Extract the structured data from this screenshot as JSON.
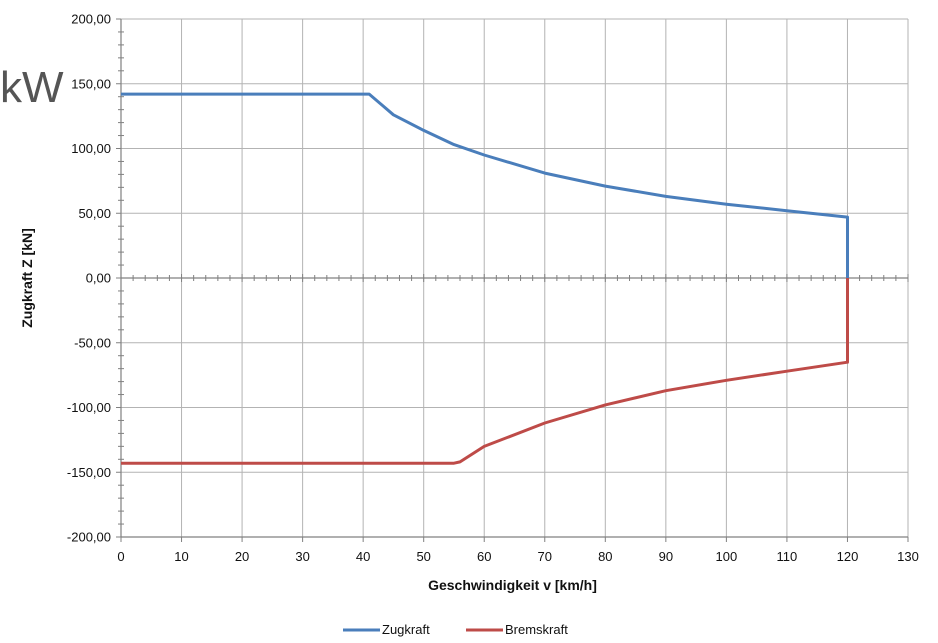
{
  "overlay_text": "kW",
  "chart_data": {
    "type": "line",
    "xlabel": "Geschwindigkeit v [km/h]",
    "ylabel": "Zugkraft Z [kN]",
    "xlim": [
      0,
      130
    ],
    "ylim": [
      -200,
      200
    ],
    "x_ticks": [
      0,
      10,
      20,
      30,
      40,
      50,
      60,
      70,
      80,
      90,
      100,
      110,
      120,
      130
    ],
    "x_tick_labels": [
      "0",
      "10",
      "20",
      "30",
      "40",
      "50",
      "60",
      "70",
      "80",
      "90",
      "100",
      "110",
      "120",
      "130"
    ],
    "y_ticks": [
      200,
      150,
      100,
      50,
      0,
      -50,
      -100,
      -150,
      -200
    ],
    "y_tick_labels": [
      "200,00",
      "150,00",
      "100,00",
      "50,00",
      "0,00",
      "-50,00",
      "-100,00",
      "-150,00",
      "-200,00"
    ],
    "grid": true,
    "legend_position": "bottom",
    "series": [
      {
        "name": "Zugkraft",
        "color": "#4a7ebb",
        "points": [
          [
            0,
            142
          ],
          [
            10,
            142
          ],
          [
            20,
            142
          ],
          [
            30,
            142
          ],
          [
            40,
            142
          ],
          [
            41,
            142
          ],
          [
            45,
            126
          ],
          [
            50,
            114
          ],
          [
            55,
            103
          ],
          [
            60,
            95
          ],
          [
            70,
            81
          ],
          [
            80,
            71
          ],
          [
            90,
            63
          ],
          [
            100,
            57
          ],
          [
            110,
            52
          ],
          [
            120,
            47
          ],
          [
            120,
            0
          ]
        ]
      },
      {
        "name": "Bremskraft",
        "color": "#be4b48",
        "points": [
          [
            0,
            -143
          ],
          [
            10,
            -143
          ],
          [
            20,
            -143
          ],
          [
            30,
            -143
          ],
          [
            40,
            -143
          ],
          [
            50,
            -143
          ],
          [
            55,
            -143
          ],
          [
            56,
            -142
          ],
          [
            60,
            -130
          ],
          [
            70,
            -112
          ],
          [
            80,
            -98
          ],
          [
            90,
            -87
          ],
          [
            100,
            -79
          ],
          [
            110,
            -72
          ],
          [
            120,
            -65
          ],
          [
            120,
            0
          ]
        ]
      }
    ]
  }
}
